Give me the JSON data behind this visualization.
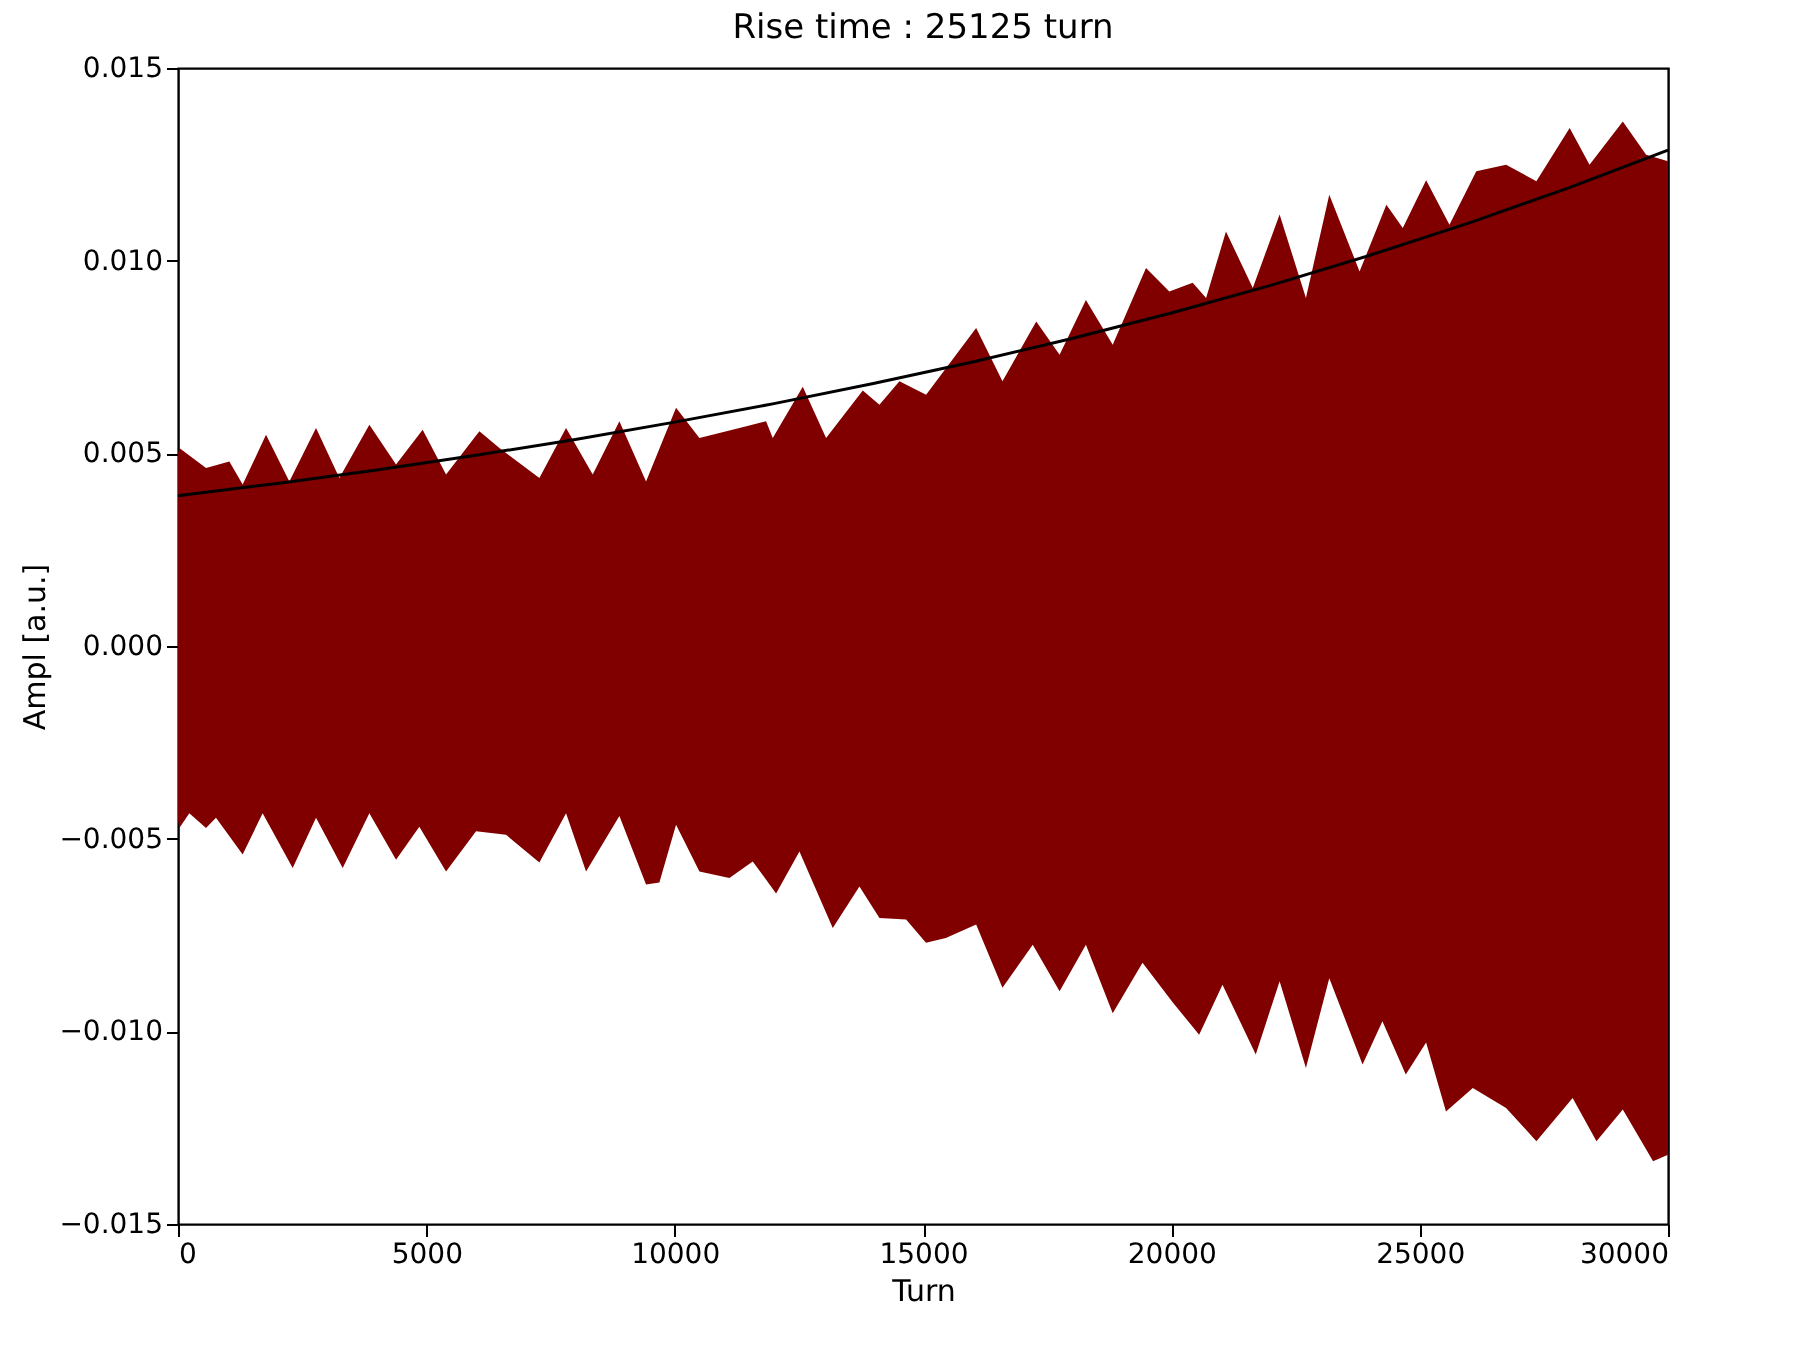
{
  "chart_data": {
    "type": "area",
    "title": "Rise time : 25125 turn",
    "xlabel": "Turn",
    "ylabel": "Ampl [a.u.]",
    "xlim": [
      0,
      30000
    ],
    "xticks": [
      0,
      5000,
      10000,
      15000,
      20000,
      25000,
      30000
    ],
    "ylim": [
      -0.015,
      0.015
    ],
    "yticks": [
      {
        "value": -0.015,
        "label": "−0.015"
      },
      {
        "value": -0.01,
        "label": "−0.010"
      },
      {
        "value": -0.005,
        "label": "−0.005"
      },
      {
        "value": 0,
        "label": "0.000"
      },
      {
        "value": 0.005,
        "label": "0.005"
      },
      {
        "value": 0.01,
        "label": "0.010"
      },
      {
        "value": 0.015,
        "label": "0.015"
      }
    ],
    "grid": false,
    "series": [
      {
        "color": "#800000",
        "x": [
          0,
          27,
          564,
          1034,
          1302,
          1772,
          2242,
          2779,
          3249,
          3853,
          4390,
          4926,
          5397,
          6068,
          6471,
          7276,
          7813,
          8350,
          8887,
          9424,
          10028,
          10498,
          11304,
          11840,
          11975,
          12579,
          13049,
          13787,
          14123,
          14525,
          15062,
          16070,
          16600,
          17280,
          17750,
          18280,
          18820,
          19490,
          19960,
          20430,
          20700,
          21100,
          21640,
          22180,
          22710,
          23180,
          23790,
          24330,
          24660,
          25130,
          25600,
          26140,
          26740,
          27350,
          28020,
          28420,
          29090,
          29560,
          30000
        ],
        "values": [
          0.005,
          0.00514,
          0.00462,
          0.00479,
          0.00419,
          0.00548,
          0.00427,
          0.00566,
          0.00436,
          0.00574,
          0.00471,
          0.00561,
          0.00445,
          0.00557,
          0.00514,
          0.00436,
          0.00566,
          0.00445,
          0.00583,
          0.00427,
          0.00618,
          0.0054,
          0.00566,
          0.00583,
          0.0054,
          0.00673,
          0.0054,
          0.00663,
          0.00626,
          0.00687,
          0.00652,
          0.00825,
          0.00687,
          0.00842,
          0.00756,
          0.00898,
          0.00782,
          0.00981,
          0.0092,
          0.00943,
          0.00903,
          0.01076,
          0.00929,
          0.0112,
          0.00903,
          0.01171,
          0.00972,
          0.01145,
          0.01085,
          0.01209,
          0.01093,
          0.01232,
          0.01249,
          0.01206,
          0.01344,
          0.01249,
          0.01361,
          0.01275,
          0.01258
        ]
      },
      {
        "color": "#800000",
        "x": [
          0,
          27,
          228,
          564,
          765,
          1302,
          1704,
          2309,
          2779,
          3316,
          3853,
          4390,
          4859,
          5397,
          6001,
          6605,
          7276,
          7813,
          8216,
          8887,
          9424,
          9692,
          10028,
          10498,
          11102,
          11572,
          12042,
          12512,
          13183,
          13720,
          14123,
          14660,
          15060,
          15460,
          16070,
          16600,
          17210,
          17750,
          18280,
          18820,
          19420,
          20030,
          20560,
          21030,
          21700,
          22180,
          22710,
          23180,
          23850,
          24250,
          24720,
          25130,
          25530,
          26070,
          26740,
          27350,
          28080,
          28560,
          29090,
          29700,
          30000
        ],
        "values": [
          -0.0045,
          -0.00472,
          -0.00434,
          -0.00472,
          -0.00446,
          -0.00541,
          -0.00434,
          -0.00576,
          -0.00446,
          -0.00576,
          -0.00434,
          -0.00555,
          -0.00469,
          -0.00585,
          -0.00481,
          -0.0049,
          -0.00562,
          -0.00434,
          -0.00585,
          -0.00441,
          -0.00619,
          -0.00614,
          -0.00464,
          -0.00585,
          -0.00602,
          -0.00559,
          -0.00642,
          -0.00533,
          -0.00732,
          -0.00624,
          -0.00706,
          -0.0071,
          -0.0077,
          -0.00758,
          -0.00723,
          -0.00887,
          -0.00775,
          -0.00896,
          -0.00775,
          -0.00953,
          -0.00822,
          -0.00925,
          -0.01009,
          -0.00879,
          -0.0106,
          -0.0087,
          -0.01095,
          -0.00862,
          -0.01086,
          -0.00974,
          -0.01112,
          -0.01029,
          -0.01208,
          -0.01147,
          -0.01199,
          -0.01285,
          -0.01173,
          -0.01285,
          -0.01203,
          -0.01337,
          -0.0132
        ]
      },
      {
        "type": "line",
        "color": "#000000",
        "line_style": "solid",
        "x": [
          0,
          2000,
          4000,
          6000,
          8000,
          10000,
          12000,
          14000,
          16000,
          18000,
          20000,
          22000,
          24000,
          26000,
          28000,
          30000
        ],
        "values": [
          0.0039,
          0.00422,
          0.00457,
          0.00495,
          0.00536,
          0.00581,
          0.00629,
          0.00681,
          0.00737,
          0.00798,
          0.00864,
          0.00936,
          0.01014,
          0.01098,
          0.01189,
          0.01287
        ]
      }
    ]
  }
}
